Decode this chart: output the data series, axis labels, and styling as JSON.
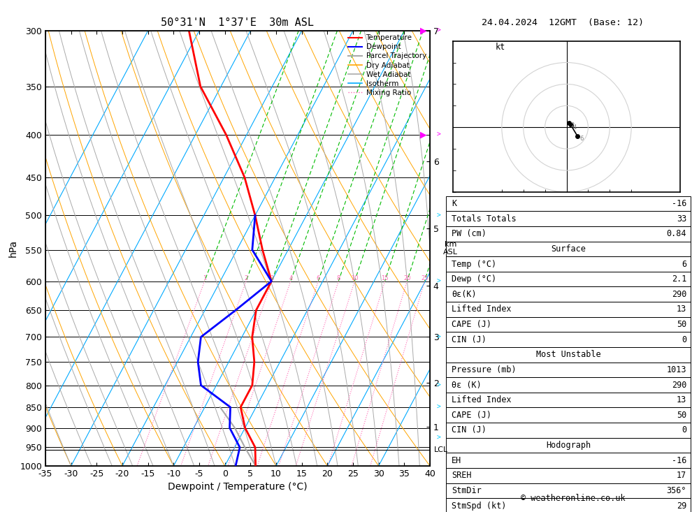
{
  "title_left": "50°31'N  1°37'E  30m ASL",
  "title_right": "24.04.2024  12GMT  (Base: 12)",
  "xlabel": "Dewpoint / Temperature (°C)",
  "ylabel_left": "hPa",
  "background_color": "white",
  "pressure_levels": [
    300,
    350,
    400,
    450,
    500,
    550,
    600,
    650,
    700,
    750,
    800,
    850,
    900,
    950,
    1000
  ],
  "temp_range_min": -35,
  "temp_range_max": 40,
  "isotherm_color": "#00AAFF",
  "dry_adiabat_color": "#FFA500",
  "wet_adiabat_color": "#AAAAAA",
  "mixing_ratio_green": "#00BB00",
  "mixing_ratio_pink": "#FF69B4",
  "mixing_ratio_values": [
    1,
    2,
    3,
    4,
    6,
    8,
    10,
    15,
    20,
    25
  ],
  "mixing_ratio_labels": [
    "1",
    "2",
    "3",
    "4",
    "6",
    "8",
    "10",
    "15",
    "20",
    "25"
  ],
  "km_ticks": [
    1,
    2,
    3,
    4,
    5,
    6,
    7
  ],
  "km_pressures": [
    898,
    795,
    700,
    607,
    518,
    431,
    300
  ],
  "lcl_pressure": 957,
  "temperature_profile": {
    "pressure": [
      1000,
      950,
      900,
      850,
      800,
      750,
      700,
      650,
      600,
      550,
      500,
      450,
      400,
      350,
      300
    ],
    "temp": [
      6,
      4,
      0,
      -3,
      -3,
      -5,
      -8,
      -10,
      -10,
      -15,
      -20,
      -26,
      -34,
      -44,
      -52
    ]
  },
  "dewpoint_profile": {
    "pressure": [
      1000,
      950,
      900,
      850,
      800,
      750,
      700,
      650,
      600,
      550,
      500
    ],
    "temp": [
      2.1,
      1,
      -3,
      -5,
      -13,
      -16,
      -18,
      -14,
      -10,
      -17,
      -20
    ]
  },
  "parcel_profile": {
    "pressure": [
      1000,
      950,
      900,
      850
    ],
    "temp": [
      6,
      2,
      -2,
      -7
    ]
  },
  "stats": {
    "K": "-16",
    "Totals_Totals": "33",
    "PW_cm": "0.84",
    "Surface_Temp": "6",
    "Surface_Dewp": "2.1",
    "Surface_theta_e": "290",
    "Surface_LI": "13",
    "Surface_CAPE": "50",
    "Surface_CIN": "0",
    "MU_Pressure": "1013",
    "MU_theta_e": "290",
    "MU_LI": "13",
    "MU_CAPE": "50",
    "MU_CIN": "0",
    "EH": "-16",
    "SREH": "17",
    "StmDir": "356°",
    "StmSpd": "29"
  },
  "lcl_label": "LCL",
  "wind_barb_pressures": [
    300,
    400,
    500,
    600,
    700,
    800,
    850,
    925,
    1000
  ],
  "wind_barb_colors": [
    "#FF00FF",
    "#FF00FF",
    "#00CCFF",
    "#00CCFF",
    "#00CCFF",
    "#00CCFF",
    "#00CCFF",
    "#00CCFF",
    "#00CC00"
  ]
}
